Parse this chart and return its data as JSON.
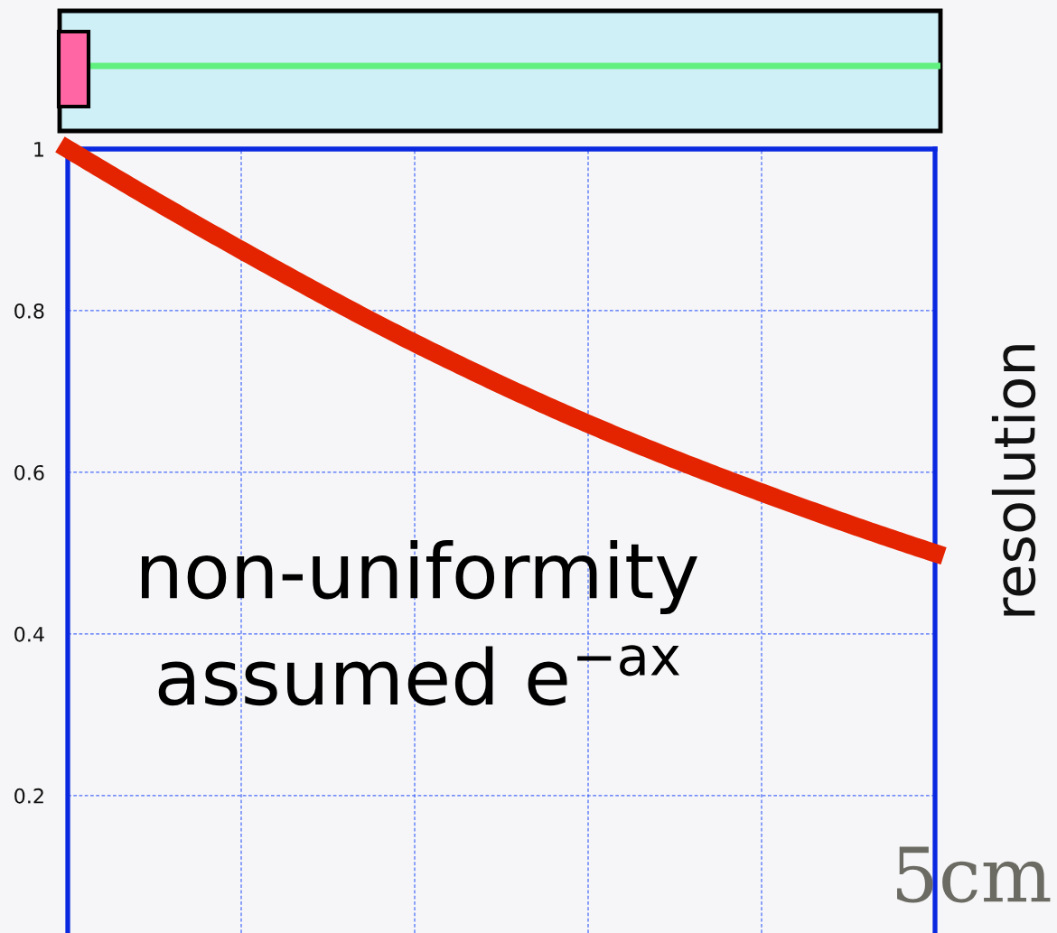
{
  "chart_data": {
    "type": "line",
    "ylabel": "resolution",
    "annotations": [
      "non-uniformity",
      "assumed e$^{−ax}$",
      "5cm"
    ],
    "categories": [
      null,
      null,
      null,
      null,
      null,
      null
    ],
    "series": [
      {
        "color": "#e42400",
        "values": [
          1,
          0.875,
          0.76,
          0.66,
          0.575,
          0.5
        ]
      }
    ],
    "ylim": [
      0.03,
      1
    ],
    "yticks": [
      0.2,
      0.4,
      0.6,
      0.8,
      1
    ],
    "grid": true,
    "tick_labels": "y",
    "line_style": "solid"
  }
}
